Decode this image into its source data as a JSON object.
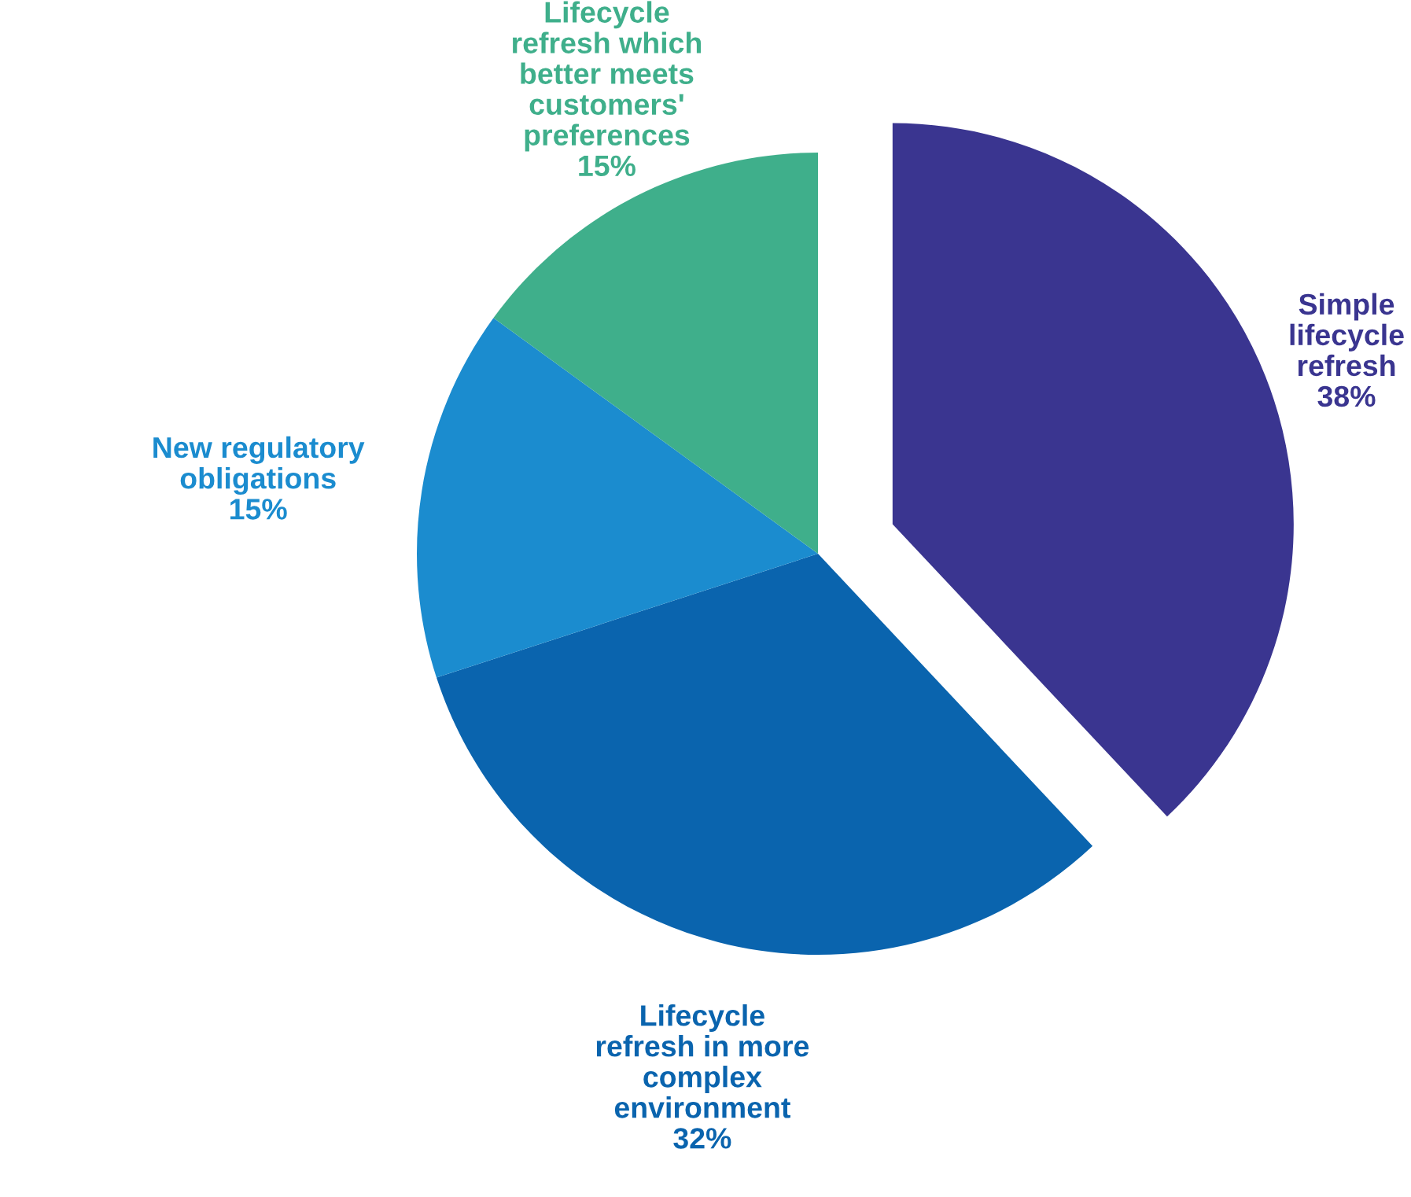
{
  "chart_data": {
    "type": "pie",
    "categories": [
      "Simple lifecycle refresh",
      "Lifecycle refresh in more complex environment",
      "New regulatory obligations",
      "Lifecycle refresh which better meets customers' preferences"
    ],
    "values": [
      38,
      32,
      15,
      15
    ],
    "colors": [
      "#3a3590",
      "#0a64ae",
      "#1b8ccf",
      "#3faf8b"
    ],
    "value_labels": [
      "38%",
      "32%",
      "15%",
      "15%"
    ]
  }
}
